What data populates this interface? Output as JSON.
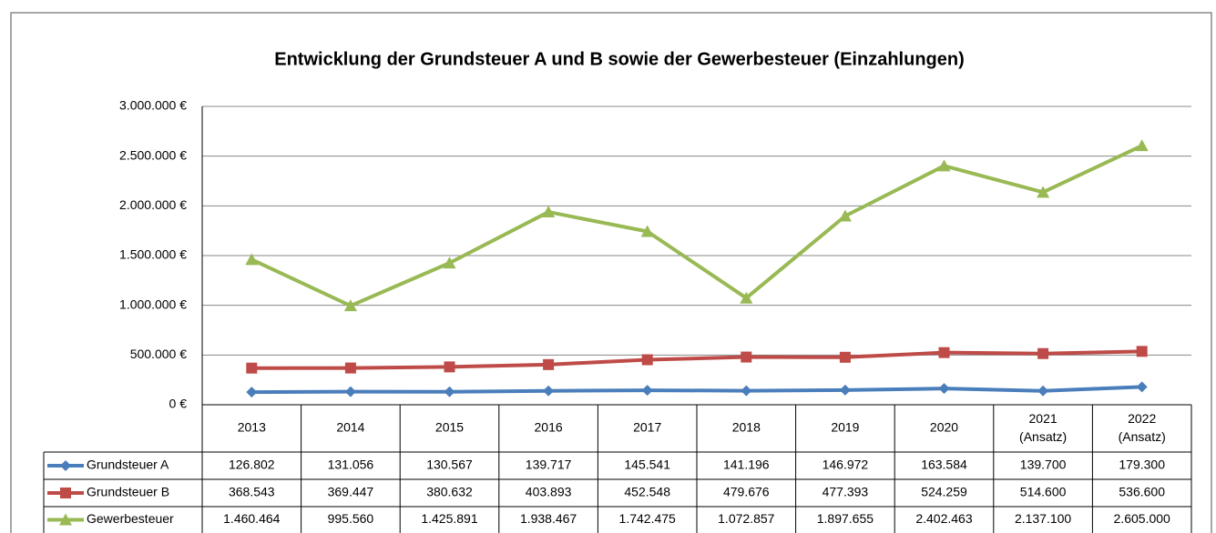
{
  "chart_data": {
    "type": "line",
    "title": "Entwicklung der Grundsteuer A und B sowie der Gewerbesteuer (Einzahlungen)",
    "categories": [
      "2013",
      "2014",
      "2015",
      "2016",
      "2017",
      "2018",
      "2019",
      "2020",
      "2021 (Ansatz)",
      "2022 (Ansatz)"
    ],
    "ylim": [
      0,
      3000000
    ],
    "yticks": [
      {
        "value": 0,
        "label": "0 €"
      },
      {
        "value": 500000,
        "label": "500.000 €"
      },
      {
        "value": 1000000,
        "label": "1.000.000 €"
      },
      {
        "value": 1500000,
        "label": "1.500.000 €"
      },
      {
        "value": 2000000,
        "label": "2.000.000 €"
      },
      {
        "value": 2500000,
        "label": "2.500.000 €"
      },
      {
        "value": 3000000,
        "label": "3.000.000 €"
      }
    ],
    "grid": true,
    "series": [
      {
        "name": "Grundsteuer A",
        "color": "#4a7ebb",
        "marker": "diamond",
        "values": [
          126802,
          131056,
          130567,
          139717,
          145541,
          141196,
          146972,
          163584,
          139700,
          179300
        ],
        "value_labels": [
          "126.802",
          "131.056",
          "130.567",
          "139.717",
          "145.541",
          "141.196",
          "146.972",
          "163.584",
          "139.700",
          "179.300"
        ]
      },
      {
        "name": "Grundsteuer B",
        "color": "#be4b48",
        "marker": "square",
        "values": [
          368543,
          369447,
          380632,
          403893,
          452548,
          479676,
          477393,
          524259,
          514600,
          536600
        ],
        "value_labels": [
          "368.543",
          "369.447",
          "380.632",
          "403.893",
          "452.548",
          "479.676",
          "477.393",
          "524.259",
          "514.600",
          "536.600"
        ]
      },
      {
        "name": "Gewerbesteuer",
        "color": "#98b954",
        "marker": "triangle",
        "values": [
          1460464,
          995560,
          1425891,
          1938467,
          1742475,
          1072857,
          1897655,
          2402463,
          2137100,
          2605000
        ],
        "value_labels": [
          "1.460.464",
          "995.560",
          "1.425.891",
          "1.938.467",
          "1.742.475",
          "1.072.857",
          "1.897.655",
          "2.402.463",
          "2.137.100",
          "2.605.000"
        ]
      }
    ]
  }
}
